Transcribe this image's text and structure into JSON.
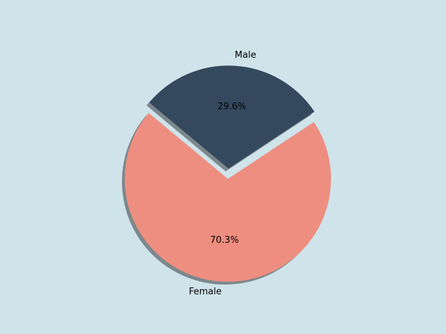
{
  "chart_data": {
    "type": "pie",
    "categories": [
      "Male",
      "Female"
    ],
    "values": [
      29.6,
      70.3
    ],
    "value_labels": [
      "29.6%",
      "70.3%"
    ],
    "colors": [
      "#34495e",
      "#ee8e80"
    ],
    "explode": [
      0.1,
      0
    ],
    "shadow": true
  }
}
